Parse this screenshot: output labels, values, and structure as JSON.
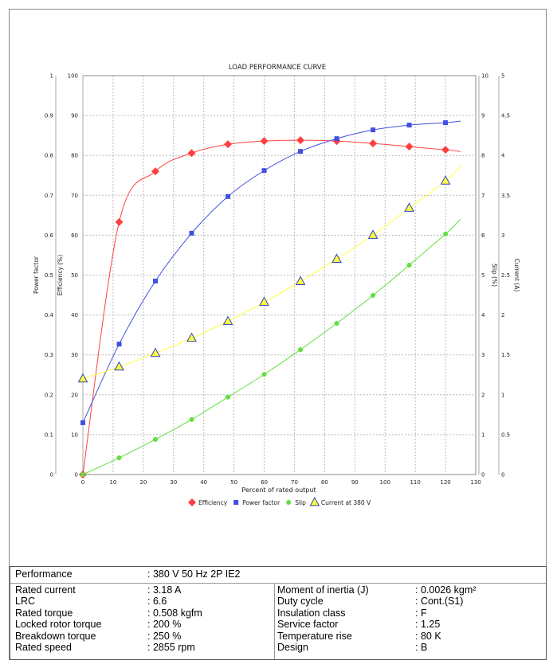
{
  "chart_data": {
    "type": "line",
    "title": "LOAD PERFORMANCE CURVE",
    "xlabel": "Percent of rated output",
    "xlim": [
      0,
      130
    ],
    "xticks": [
      0,
      10,
      20,
      30,
      40,
      50,
      60,
      70,
      80,
      90,
      100,
      110,
      120,
      130
    ],
    "axes": [
      {
        "name": "Power factor",
        "ylim": [
          0,
          1
        ],
        "ticks": [
          "0",
          "0.1",
          "0.2",
          "0.3",
          "0.4",
          "0.5",
          "0.6",
          "0.7",
          "0.8",
          "0.9",
          "1"
        ]
      },
      {
        "name": "Efficiency (%)",
        "ylim": [
          0,
          100
        ],
        "ticks": [
          "0",
          "10",
          "20",
          "30",
          "40",
          "50",
          "60",
          "70",
          "80",
          "90",
          "100"
        ]
      },
      {
        "name": "Slip (%)",
        "ylim": [
          0,
          10
        ],
        "ticks": [
          "0",
          "1",
          "2",
          "3",
          "4",
          "5",
          "6",
          "7",
          "8",
          "9",
          "10"
        ]
      },
      {
        "name": "Current (A)",
        "ylim": [
          0,
          5
        ],
        "ticks": [
          "0",
          "0.5",
          "1",
          "1.5",
          "2",
          "2.5",
          "3",
          "3.5",
          "4",
          "4.5",
          "5"
        ]
      }
    ],
    "grid": true,
    "legend_position": "bottom",
    "x": [
      0,
      12,
      24,
      36,
      48,
      60,
      72,
      84,
      96,
      108,
      120
    ],
    "series": [
      {
        "name": "Efficiency",
        "axis": "Efficiency (%)",
        "color": "#ff4040",
        "marker": "diamond",
        "values": [
          0,
          63.3,
          76,
          80.6,
          82.8,
          83.6,
          83.8,
          83.6,
          83,
          82.2,
          81.4
        ],
        "end": 81.0
      },
      {
        "name": "Power factor",
        "axis": "Power factor",
        "color": "#4050e0",
        "marker": "square",
        "values": [
          0.13,
          0.327,
          0.485,
          0.605,
          0.697,
          0.762,
          0.81,
          0.842,
          0.864,
          0.876,
          0.882
        ],
        "end": 0.886
      },
      {
        "name": "Slip",
        "axis": "Slip (%)",
        "color": "#60e040",
        "marker": "circle",
        "values": [
          0,
          0.42,
          0.88,
          1.38,
          1.94,
          2.51,
          3.13,
          3.79,
          4.49,
          5.25,
          6.03
        ],
        "end": 6.4
      },
      {
        "name": "Current at 380 V",
        "axis": "Current (A)",
        "color": "#ffff40",
        "marker": "triangle",
        "values": [
          1.2,
          1.35,
          1.52,
          1.71,
          1.92,
          2.16,
          2.42,
          2.7,
          3.0,
          3.34,
          3.68
        ],
        "end": 3.86
      }
    ]
  },
  "specs": {
    "performance": {
      "label": "Performance",
      "value": ": 380 V 50 Hz 2P IE2"
    },
    "left": [
      {
        "label": "Rated current",
        "value": ": 3.18 A"
      },
      {
        "label": "LRC",
        "value": ": 6.6"
      },
      {
        "label": "Rated torque",
        "value": ": 0.508 kgfm"
      },
      {
        "label": "Locked rotor torque",
        "value": ": 200 %"
      },
      {
        "label": "Breakdown torque",
        "value": ": 250 %"
      },
      {
        "label": "Rated speed",
        "value": ": 2855 rpm"
      }
    ],
    "right": [
      {
        "label": "Moment of inertia (J)",
        "value": ": 0.0026 kgm²"
      },
      {
        "label": "Duty cycle",
        "value": ": Cont.(S1)"
      },
      {
        "label": "Insulation class",
        "value": ": F"
      },
      {
        "label": "Service factor",
        "value": ": 1.25"
      },
      {
        "label": "Temperature rise",
        "value": ": 80 K"
      },
      {
        "label": "Design",
        "value": ": B"
      }
    ]
  }
}
